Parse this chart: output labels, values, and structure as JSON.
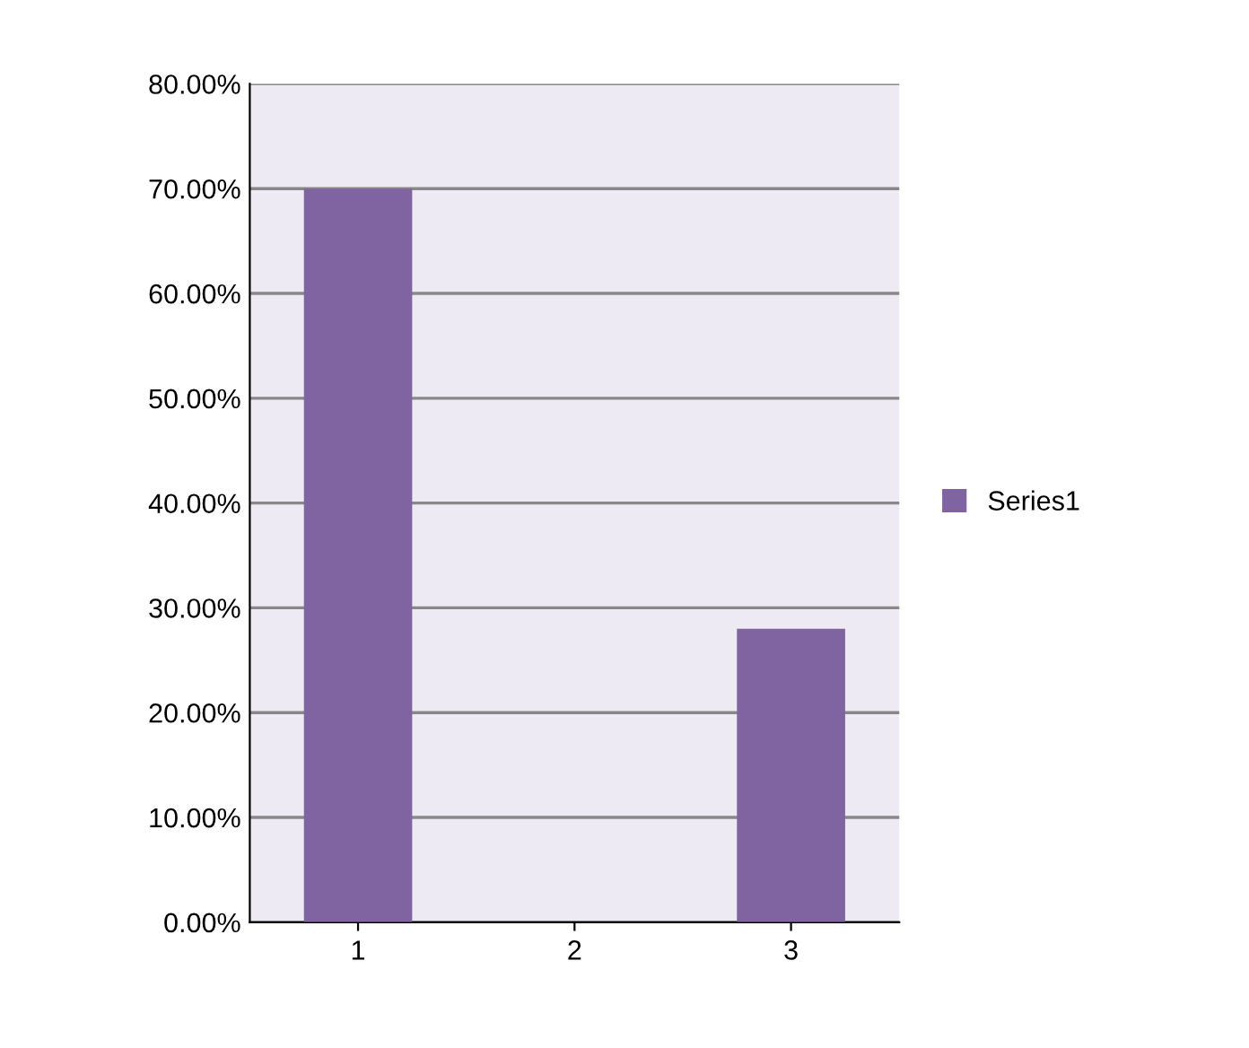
{
  "chart_data": {
    "type": "bar",
    "categories": [
      "1",
      "2",
      "3"
    ],
    "series": [
      {
        "name": "Series1",
        "color": "#8064a2",
        "values": [
          0.7,
          0.0,
          0.28
        ]
      }
    ],
    "ylim": [
      0,
      0.8
    ],
    "yticks": [
      {
        "value": 0,
        "label": "0.00%"
      },
      {
        "value": 0.1,
        "label": "10.00%"
      },
      {
        "value": 0.2,
        "label": "20.00%"
      },
      {
        "value": 0.3,
        "label": "30.00%"
      },
      {
        "value": 0.4,
        "label": "40.00%"
      },
      {
        "value": 0.5,
        "label": "50.00%"
      },
      {
        "value": 0.6,
        "label": "60.00%"
      },
      {
        "value": 0.7,
        "label": "70.00%"
      },
      {
        "value": 0.8,
        "label": "80.00%"
      }
    ],
    "grid": "y",
    "legend": "right"
  }
}
